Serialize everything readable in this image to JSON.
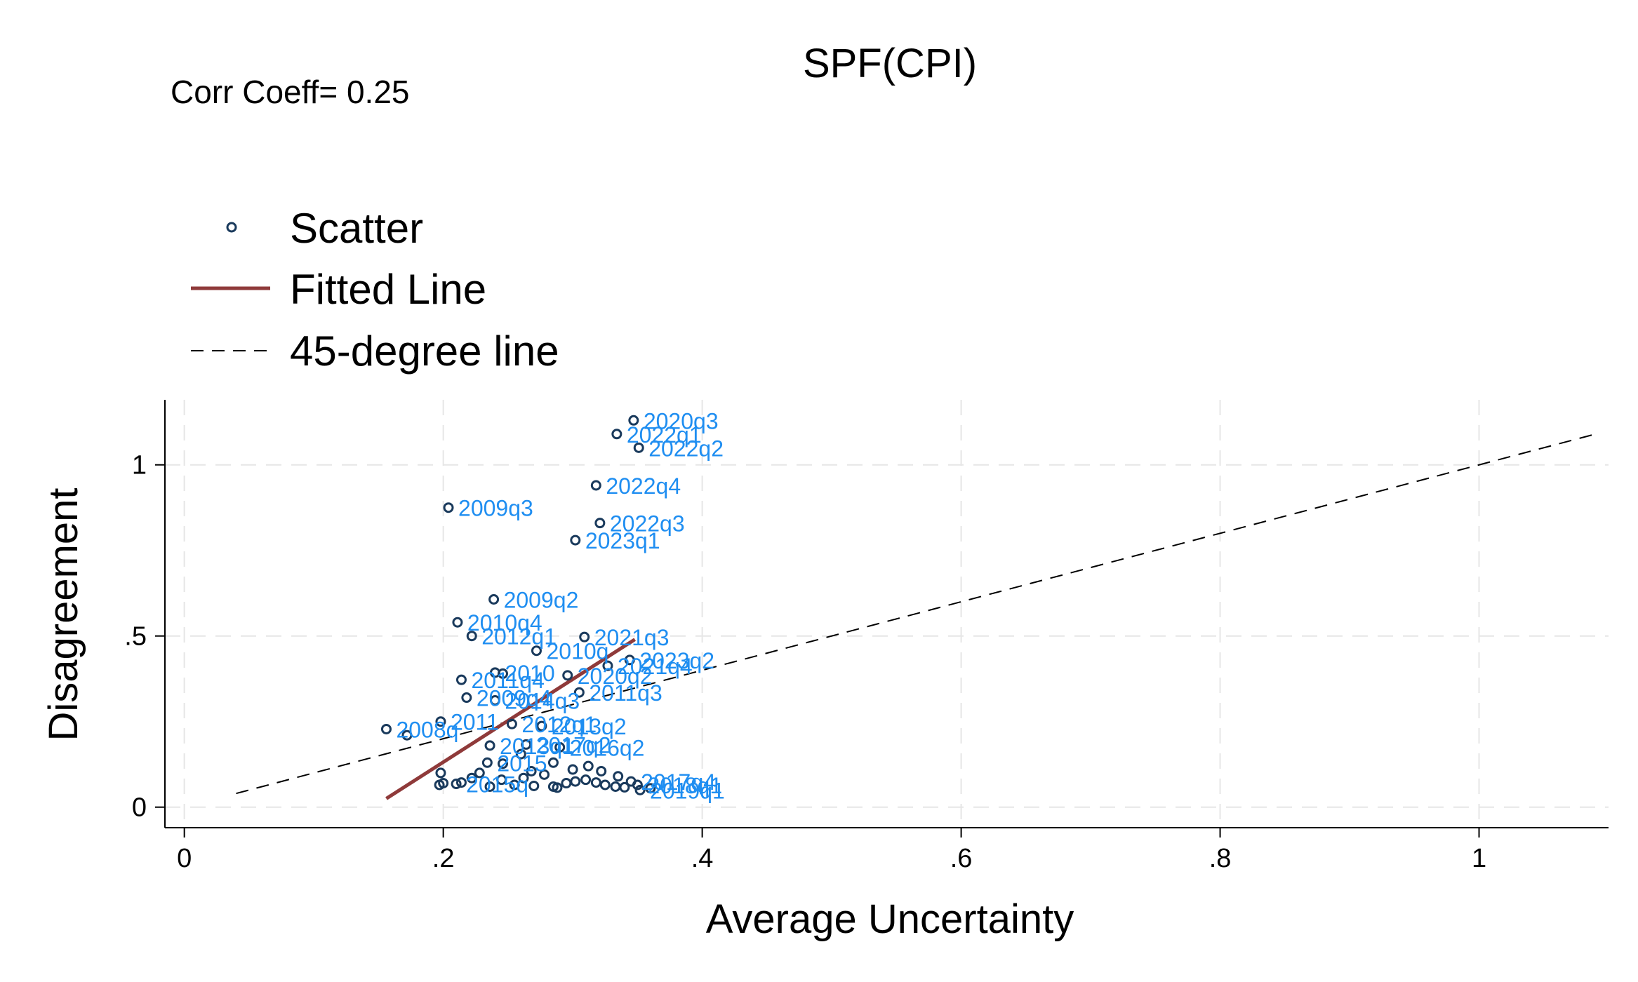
{
  "chart_data": {
    "type": "scatter",
    "title": "SPF(CPI)",
    "note": "Corr Coeff= 0.25",
    "xlabel": "Average Uncertainty",
    "ylabel": "Disagreement",
    "xlim": [
      -0.015,
      1.1
    ],
    "ylim": [
      -0.06,
      1.19
    ],
    "xticks": [
      0,
      0.2,
      0.4,
      0.6,
      0.8,
      1
    ],
    "xtick_labels": [
      "0",
      ".2",
      ".4",
      ".6",
      ".8",
      "1"
    ],
    "yticks": [
      0,
      0.5,
      1
    ],
    "ytick_labels": [
      "0",
      ".5",
      "1"
    ],
    "grid": true,
    "legend_position": "top-left",
    "colors": {
      "marker": "#1a3a5c",
      "label": "#1f8ef1",
      "fit": "#8f3a3a",
      "diag": "#000000",
      "grid": "#e6e6e6"
    },
    "legend": [
      {
        "name": "Scatter",
        "kind": "marker"
      },
      {
        "name": "Fitted Line",
        "kind": "fit"
      },
      {
        "name": "45-degree line",
        "kind": "diag"
      }
    ],
    "fitted_line": {
      "x": [
        0.156,
        0.348
      ],
      "y": [
        0.025,
        0.49
      ]
    },
    "diag_line": {
      "x": [
        0.04,
        1.09
      ],
      "y": [
        0.04,
        1.09
      ]
    },
    "points": [
      {
        "x": 0.347,
        "y": 1.13,
        "label": "2020q3"
      },
      {
        "x": 0.334,
        "y": 1.09,
        "label": "2022q1"
      },
      {
        "x": 0.351,
        "y": 1.05,
        "label": "2022q2"
      },
      {
        "x": 0.318,
        "y": 0.94,
        "label": "2022q4"
      },
      {
        "x": 0.204,
        "y": 0.875,
        "label": "2009q3"
      },
      {
        "x": 0.321,
        "y": 0.83,
        "label": "2022q3"
      },
      {
        "x": 0.302,
        "y": 0.78,
        "label": "2023q1"
      },
      {
        "x": 0.239,
        "y": 0.607,
        "label": "2009q2"
      },
      {
        "x": 0.211,
        "y": 0.54,
        "label": "2010q4"
      },
      {
        "x": 0.222,
        "y": 0.5,
        "label": "2012q1"
      },
      {
        "x": 0.309,
        "y": 0.497,
        "label": "2021q3"
      },
      {
        "x": 0.272,
        "y": 0.457,
        "label": "2010q"
      },
      {
        "x": 0.344,
        "y": 0.43,
        "label": "2023q2"
      },
      {
        "x": 0.327,
        "y": 0.413,
        "label": "2021q4"
      },
      {
        "x": 0.24,
        "y": 0.393,
        "label": "2010"
      },
      {
        "x": 0.246,
        "y": 0.39,
        "label": ""
      },
      {
        "x": 0.296,
        "y": 0.385,
        "label": "2020q2"
      },
      {
        "x": 0.214,
        "y": 0.372,
        "label": "2011q4"
      },
      {
        "x": 0.305,
        "y": 0.335,
        "label": "2011q3"
      },
      {
        "x": 0.218,
        "y": 0.32,
        "label": "2009q4"
      },
      {
        "x": 0.24,
        "y": 0.312,
        "label": "2014q3"
      },
      {
        "x": 0.198,
        "y": 0.25,
        "label": "2011"
      },
      {
        "x": 0.253,
        "y": 0.243,
        "label": "2012q1"
      },
      {
        "x": 0.156,
        "y": 0.228,
        "label": "2008q"
      },
      {
        "x": 0.172,
        "y": 0.21,
        "label": ""
      },
      {
        "x": 0.276,
        "y": 0.237,
        "label": "2013q2"
      },
      {
        "x": 0.236,
        "y": 0.18,
        "label": "2013q1"
      },
      {
        "x": 0.264,
        "y": 0.183,
        "label": "2017q2"
      },
      {
        "x": 0.29,
        "y": 0.175,
        "label": "2016q2"
      },
      {
        "x": 0.26,
        "y": 0.155,
        "label": ""
      },
      {
        "x": 0.234,
        "y": 0.13,
        "label": "2015"
      },
      {
        "x": 0.246,
        "y": 0.127,
        "label": ""
      },
      {
        "x": 0.268,
        "y": 0.105,
        "label": ""
      },
      {
        "x": 0.198,
        "y": 0.1,
        "label": ""
      },
      {
        "x": 0.2,
        "y": 0.07,
        "label": ""
      },
      {
        "x": 0.197,
        "y": 0.065,
        "label": ""
      },
      {
        "x": 0.21,
        "y": 0.068,
        "label": "2015q"
      },
      {
        "x": 0.214,
        "y": 0.072,
        "label": ""
      },
      {
        "x": 0.222,
        "y": 0.085,
        "label": ""
      },
      {
        "x": 0.228,
        "y": 0.1,
        "label": ""
      },
      {
        "x": 0.245,
        "y": 0.08,
        "label": ""
      },
      {
        "x": 0.255,
        "y": 0.065,
        "label": ""
      },
      {
        "x": 0.27,
        "y": 0.062,
        "label": ""
      },
      {
        "x": 0.285,
        "y": 0.06,
        "label": ""
      },
      {
        "x": 0.288,
        "y": 0.057,
        "label": ""
      },
      {
        "x": 0.295,
        "y": 0.07,
        "label": ""
      },
      {
        "x": 0.302,
        "y": 0.075,
        "label": ""
      },
      {
        "x": 0.31,
        "y": 0.08,
        "label": ""
      },
      {
        "x": 0.318,
        "y": 0.072,
        "label": ""
      },
      {
        "x": 0.325,
        "y": 0.065,
        "label": ""
      },
      {
        "x": 0.333,
        "y": 0.06,
        "label": ""
      },
      {
        "x": 0.34,
        "y": 0.058,
        "label": ""
      },
      {
        "x": 0.345,
        "y": 0.075,
        "label": "2017q4"
      },
      {
        "x": 0.35,
        "y": 0.065,
        "label": "2018q1"
      },
      {
        "x": 0.352,
        "y": 0.05,
        "label": "2019q1"
      },
      {
        "x": 0.36,
        "y": 0.055,
        "label": ""
      },
      {
        "x": 0.3,
        "y": 0.11,
        "label": ""
      },
      {
        "x": 0.312,
        "y": 0.12,
        "label": ""
      },
      {
        "x": 0.285,
        "y": 0.13,
        "label": ""
      },
      {
        "x": 0.278,
        "y": 0.095,
        "label": ""
      },
      {
        "x": 0.322,
        "y": 0.105,
        "label": ""
      },
      {
        "x": 0.335,
        "y": 0.09,
        "label": ""
      },
      {
        "x": 0.262,
        "y": 0.085,
        "label": ""
      },
      {
        "x": 0.236,
        "y": 0.06,
        "label": ""
      }
    ]
  }
}
